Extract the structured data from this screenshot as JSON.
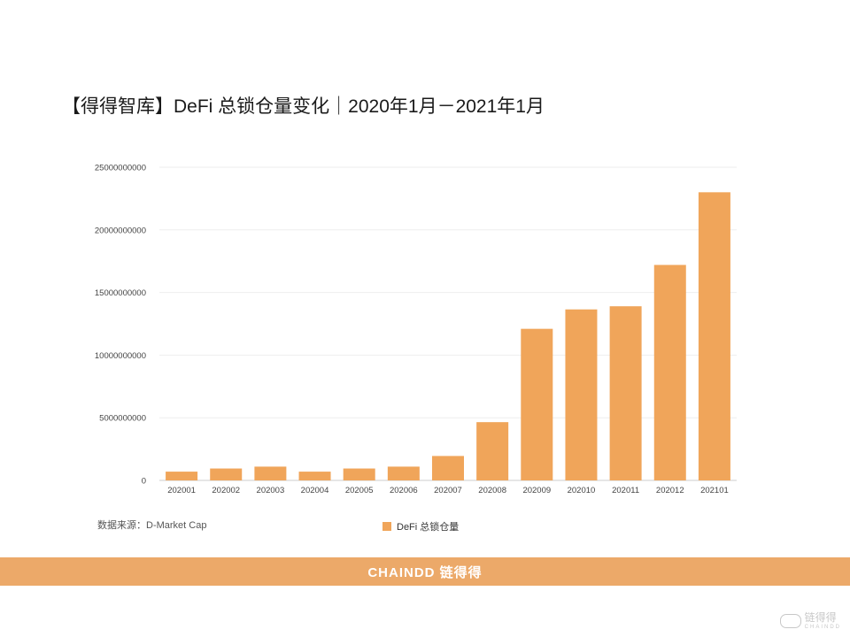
{
  "title": "【得得智库】DeFi 总锁仓量变化｜2020年1月－2021年1月",
  "source": "数据来源：D-Market Cap",
  "footer_logo": "CHAINDD 链得得",
  "corner_logo": {
    "main": "链得得",
    "sub": "CHAINDD"
  },
  "colors": {
    "bar": "#f0a55a",
    "footer_band": "#eca969"
  },
  "chart_data": {
    "type": "bar",
    "title": "【得得智库】DeFi 总锁仓量变化｜2020年1月－2021年1月",
    "xlabel": "",
    "ylabel": "",
    "ylim": [
      0,
      25000000000
    ],
    "yticks": [
      0,
      5000000000,
      10000000000,
      15000000000,
      20000000000,
      25000000000
    ],
    "categories": [
      "202001",
      "202002",
      "202003",
      "202004",
      "202005",
      "202006",
      "202007",
      "202008",
      "202009",
      "202010",
      "202011",
      "202012",
      "202101"
    ],
    "series": [
      {
        "name": "DeFi 总锁仓量",
        "values": [
          700000000,
          950000000,
          1100000000,
          700000000,
          950000000,
          1100000000,
          1950000000,
          4650000000,
          12100000000,
          13650000000,
          13900000000,
          17200000000,
          23000000000
        ]
      }
    ],
    "legend": "bottom-center",
    "grid": true
  }
}
